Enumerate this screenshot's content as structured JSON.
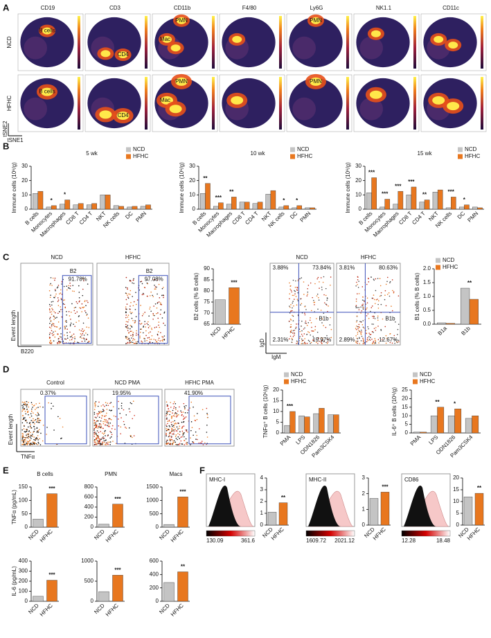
{
  "panel_labels": [
    "A",
    "B",
    "C",
    "D",
    "E",
    "F"
  ],
  "tsne": {
    "markers": [
      "CD19",
      "CD3",
      "CD11b",
      "F4/80",
      "Ly6G",
      "NK1.1",
      "CD11c"
    ],
    "conditions": [
      "NCD",
      "HFHC"
    ],
    "x_axis": "tSNE1",
    "y_axis": "tSNE2",
    "clusters": [
      "B cells",
      "PMN",
      "Mac",
      "CD4"
    ]
  },
  "chart_data": [
    {
      "type": "bar",
      "title": "5 wk",
      "ylabel": "Immune cells (10⁶/g)",
      "categories": [
        "B cells",
        "Monocytes",
        "Macrophages",
        "CD8 T",
        "CD4 T",
        "NKT",
        "NK cells",
        "DC",
        "PMN"
      ],
      "series": [
        {
          "name": "NCD",
          "color": "#c4c4c4",
          "values": [
            11,
            1.5,
            3.5,
            3,
            3,
            10,
            2.5,
            1.5,
            2
          ]
        },
        {
          "name": "HFHC",
          "color": "#e8771f",
          "values": [
            12.5,
            2.5,
            6.5,
            4,
            4,
            10,
            2,
            2,
            3
          ]
        }
      ],
      "significance": [
        null,
        "*",
        "*",
        null,
        null,
        null,
        null,
        null,
        null
      ],
      "ylim": [
        0,
        30
      ],
      "yticks": [
        0,
        10,
        20,
        30
      ]
    },
    {
      "type": "bar",
      "title": "10 wk",
      "ylabel": "Immune cells (10⁶/g)",
      "categories": [
        "B cells",
        "Monocytes",
        "Macrophages",
        "CD8 T",
        "CD4 T",
        "NKT",
        "NK cells",
        "DC",
        "PMN"
      ],
      "series": [
        {
          "name": "NCD",
          "color": "#c4c4c4",
          "values": [
            11,
            2,
            3.5,
            5,
            4,
            10.5,
            1.5,
            1,
            1
          ]
        },
        {
          "name": "HFHC",
          "color": "#e8771f",
          "values": [
            18,
            4.5,
            8.5,
            5,
            5,
            13,
            2.5,
            2.5,
            1
          ]
        }
      ],
      "significance": [
        "**",
        "***",
        "**",
        null,
        null,
        null,
        "*",
        "*",
        null
      ],
      "ylim": [
        0,
        30
      ],
      "yticks": [
        0,
        10,
        20,
        30
      ]
    },
    {
      "type": "bar",
      "title": "15 wk",
      "ylabel": "Immune cells (10⁶/g)",
      "categories": [
        "B cells",
        "Monocytes",
        "Macrophages",
        "CD8 T",
        "CD4 T",
        "NKT",
        "NK cells",
        "DC",
        "PMN"
      ],
      "series": [
        {
          "name": "NCD",
          "color": "#c4c4c4",
          "values": [
            11.5,
            1.5,
            3.5,
            10,
            5,
            12,
            1,
            1.5,
            1.5
          ]
        },
        {
          "name": "HFHC",
          "color": "#e8771f",
          "values": [
            22,
            7,
            12.5,
            15.5,
            6.5,
            13.5,
            8.5,
            3,
            1
          ]
        }
      ],
      "significance": [
        "***",
        "***",
        "***",
        "***",
        "**",
        null,
        "***",
        "*",
        null
      ],
      "ylim": [
        0,
        30
      ],
      "yticks": [
        0,
        10,
        20,
        30
      ]
    },
    {
      "type": "bar",
      "ylabel": "B2 cells (% B cells)",
      "categories": [
        "NCD",
        "HFHC"
      ],
      "values": [
        76,
        81.5
      ],
      "colors": [
        "#c4c4c4",
        "#e8771f"
      ],
      "significance": [
        null,
        "***"
      ],
      "ylim": [
        65,
        90
      ],
      "yticks": [
        65,
        70,
        75,
        80,
        85,
        90
      ]
    },
    {
      "type": "bar",
      "ylabel": "B1 cells (% B cells)",
      "categories": [
        "B1a",
        "B1b"
      ],
      "series": [
        {
          "name": "NCD",
          "color": "#c4c4c4",
          "values": [
            0.05,
            1.3
          ]
        },
        {
          "name": "HFHC",
          "color": "#e8771f",
          "values": [
            0.03,
            0.9
          ]
        }
      ],
      "significance": [
        null,
        "**"
      ],
      "ylim": [
        0,
        2
      ],
      "yticks": [
        {
          "value": 0,
          "label": "0.0"
        },
        0.5,
        {
          "value": 1,
          "label": "1.0"
        },
        1.5,
        {
          "value": 2,
          "label": "2.0"
        }
      ]
    },
    {
      "type": "bar",
      "ylabel": "TNFα⁺ B cells (10⁶/g)",
      "categories": [
        "PMA",
        "LPS",
        "ODN1826",
        "Pam3CSK4"
      ],
      "series": [
        {
          "name": "NCD",
          "color": "#c4c4c4",
          "values": [
            3.5,
            8,
            9,
            8.5
          ]
        },
        {
          "name": "HFHC",
          "color": "#e8771f",
          "values": [
            10,
            7.5,
            11.5,
            8.5
          ]
        }
      ],
      "significance": [
        "***",
        null,
        null,
        null
      ],
      "ylim": [
        0,
        20
      ],
      "yticks": [
        0,
        5,
        10,
        15,
        20
      ]
    },
    {
      "type": "bar",
      "ylabel": "IL-6⁺ B cells (10⁶/g)",
      "categories": [
        "PMA",
        "LPS",
        "ODN1826",
        "Pam3CSK4"
      ],
      "series": [
        {
          "name": "NCD",
          "color": "#c4c4c4",
          "values": [
            0.5,
            10,
            10,
            8.5
          ]
        },
        {
          "name": "HFHC",
          "color": "#e8771f",
          "values": [
            0.5,
            15,
            14,
            10
          ]
        }
      ],
      "significance": [
        null,
        "**",
        "*",
        null
      ],
      "ylim": [
        0,
        25
      ],
      "yticks": [
        0,
        5,
        10,
        15,
        20,
        25
      ]
    },
    {
      "type": "bar",
      "title": "B cells",
      "ylabel": "TNFα (pg/mL)",
      "categories": [
        "NCD",
        "HFHC"
      ],
      "values": [
        30,
        125
      ],
      "colors": [
        "#c4c4c4",
        "#e8771f"
      ],
      "significance": [
        null,
        "***"
      ],
      "ylim": [
        0,
        150
      ],
      "yticks": [
        0,
        50,
        100,
        150
      ]
    },
    {
      "type": "bar",
      "title": "PMN",
      "categories": [
        "NCD",
        "HFHC"
      ],
      "values": [
        60,
        460
      ],
      "colors": [
        "#c4c4c4",
        "#e8771f"
      ],
      "significance": [
        null,
        "***"
      ],
      "ylim": [
        0,
        800
      ],
      "yticks": [
        0,
        200,
        400,
        600,
        800
      ]
    },
    {
      "type": "bar",
      "title": "Macs",
      "categories": [
        "NCD",
        "HFHC"
      ],
      "values": [
        100,
        1130
      ],
      "colors": [
        "#c4c4c4",
        "#e8771f"
      ],
      "significance": [
        null,
        "***"
      ],
      "ylim": [
        0,
        1500
      ],
      "yticks": [
        0,
        500,
        1000,
        1500
      ]
    },
    {
      "type": "bar",
      "ylabel": "IL-6 (pg/mL)",
      "categories": [
        "NCD",
        "HFHC"
      ],
      "values": [
        50,
        210
      ],
      "colors": [
        "#c4c4c4",
        "#e8771f"
      ],
      "significance": [
        null,
        "***"
      ],
      "ylim": [
        0,
        400
      ],
      "yticks": [
        0,
        100,
        200,
        300,
        400
      ]
    },
    {
      "type": "bar",
      "categories": [
        "NCD",
        "HFHC"
      ],
      "values": [
        240,
        650
      ],
      "colors": [
        "#c4c4c4",
        "#e8771f"
      ],
      "significance": [
        null,
        "***"
      ],
      "ylim": [
        0,
        1000
      ],
      "yticks": [
        0,
        500,
        1000
      ]
    },
    {
      "type": "bar",
      "categories": [
        "NCD",
        "HFHC"
      ],
      "values": [
        280,
        440
      ],
      "colors": [
        "#c4c4c4",
        "#e8771f"
      ],
      "significance": [
        null,
        "**"
      ],
      "ylim": [
        0,
        600
      ],
      "yticks": [
        0,
        200,
        400,
        600
      ]
    },
    {
      "type": "bar",
      "ylabel": "MHC-I (Mean x 10³)",
      "categories": [
        "NCD",
        "HFHC"
      ],
      "values": [
        1.1,
        1.9
      ],
      "colors": [
        "#c4c4c4",
        "#e8771f"
      ],
      "significance": [
        null,
        "**"
      ],
      "ylim": [
        0,
        4
      ],
      "yticks": [
        0,
        1,
        2,
        3,
        4
      ]
    },
    {
      "type": "bar",
      "ylabel": "MHC-II (Mean x 10³)",
      "categories": [
        "NCD",
        "HFHC"
      ],
      "values": [
        1.7,
        2.1
      ],
      "colors": [
        "#c4c4c4",
        "#e8771f"
      ],
      "significance": [
        null,
        "***"
      ],
      "ylim": [
        0,
        3
      ],
      "yticks": [
        0,
        1,
        2,
        3
      ]
    },
    {
      "type": "bar",
      "ylabel": "CD86 (Mean)",
      "categories": [
        "NCD",
        "HFHC"
      ],
      "values": [
        12,
        13.5
      ],
      "colors": [
        "#c4c4c4",
        "#e8771f"
      ],
      "significance": [
        null,
        "**"
      ],
      "ylim": [
        0,
        20
      ],
      "yticks": [
        0,
        5,
        10,
        15,
        20
      ]
    }
  ],
  "flow_c": {
    "conditions": [
      "NCD",
      "HFHC"
    ],
    "gate": "B2",
    "percents": [
      "91.78%",
      "97.08%"
    ],
    "y_axis": "Event length",
    "x_axis": "B220"
  },
  "flow_c2": {
    "conditions": [
      "NCD",
      "HFHC"
    ],
    "gate": "B1b",
    "quadrants": [
      [
        "3.88%",
        "73.84%",
        "2.31%",
        "19.97%"
      ],
      [
        "3.81%",
        "80.63%",
        "2.89%",
        "12.67%"
      ]
    ],
    "y_axis": "IgD",
    "x_axis": "IgM"
  },
  "flow_d": {
    "conditions": [
      "Control",
      "NCD PMA",
      "HFHC PMA"
    ],
    "percents": [
      "0.37%",
      "19.95%",
      "41.90%"
    ],
    "y_axis": "Event length",
    "x_axis": "TNFα"
  },
  "histograms": [
    {
      "label": "MHC-I",
      "scale": [
        "130.09",
        "361.6"
      ]
    },
    {
      "label": "MHC-II",
      "scale": [
        "1609.72",
        "2021.12"
      ]
    },
    {
      "label": "CD86",
      "scale": [
        "12.28",
        "18.48"
      ]
    }
  ]
}
